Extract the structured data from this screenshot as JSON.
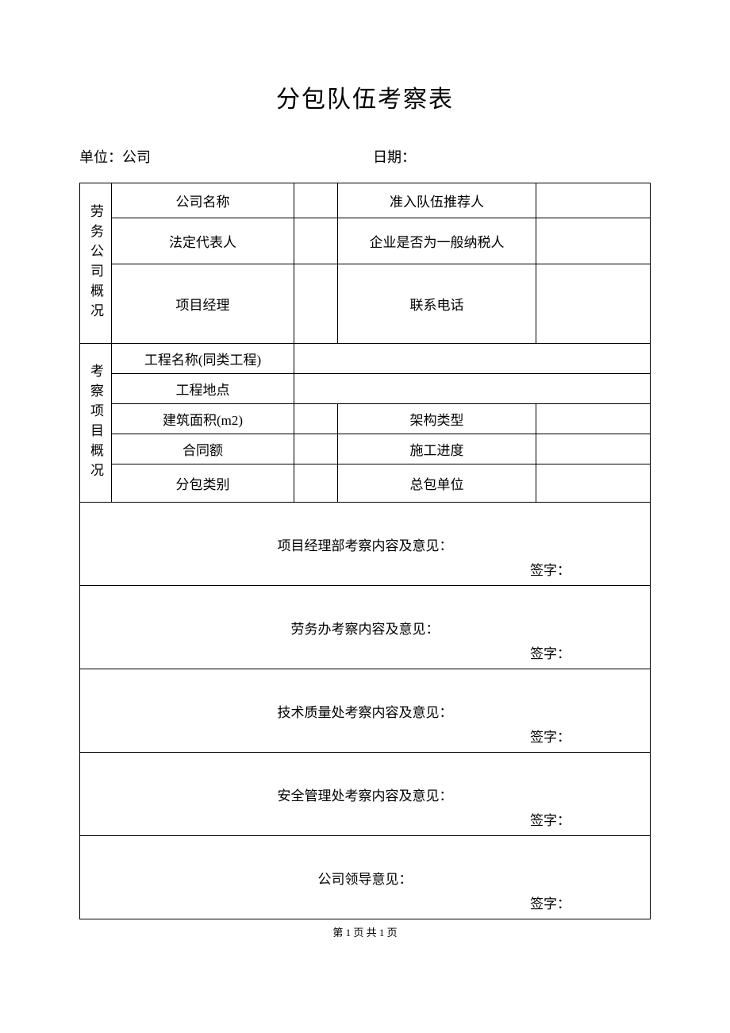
{
  "title": "分包队伍考察表",
  "meta": {
    "unit_label": "单位：公司",
    "date_label": "日期：",
    "date_value": ""
  },
  "section1": {
    "header": "劳务公司概况",
    "rows": {
      "company_name": "公司名称",
      "recommender": "准入队伍推荐人",
      "legal_rep": "法定代表人",
      "taxpayer": "企业是否为一般纳税人",
      "pm": "项目经理",
      "phone": "联系电话"
    }
  },
  "section2": {
    "header": "考察项目概况",
    "rows": {
      "project_name": "工程名称(同类工程)",
      "project_loc": "工程地点",
      "area": "建筑面积(m2)",
      "structure_type": "架构类型",
      "contract_amount": "合同额",
      "progress": "施工进度",
      "sub_type": "分包类别",
      "main_contractor": "总包单位"
    }
  },
  "opinions": {
    "pm_dept": "项目经理部考察内容及意见：",
    "labor_office": "劳务办考察内容及意见：",
    "tech_quality": "技术质量处考察内容及意见：",
    "safety": "安全管理处考察内容及意见：",
    "leader": "公司领导意见：",
    "sign_label": "签字："
  },
  "footer": "第 1 页 共 1 页",
  "style": {
    "border_color": "#000000",
    "font_family": "SimSun",
    "title_fontsize": 30,
    "body_fontsize": 17,
    "footer_fontsize": 13,
    "background_color": "#ffffff"
  }
}
